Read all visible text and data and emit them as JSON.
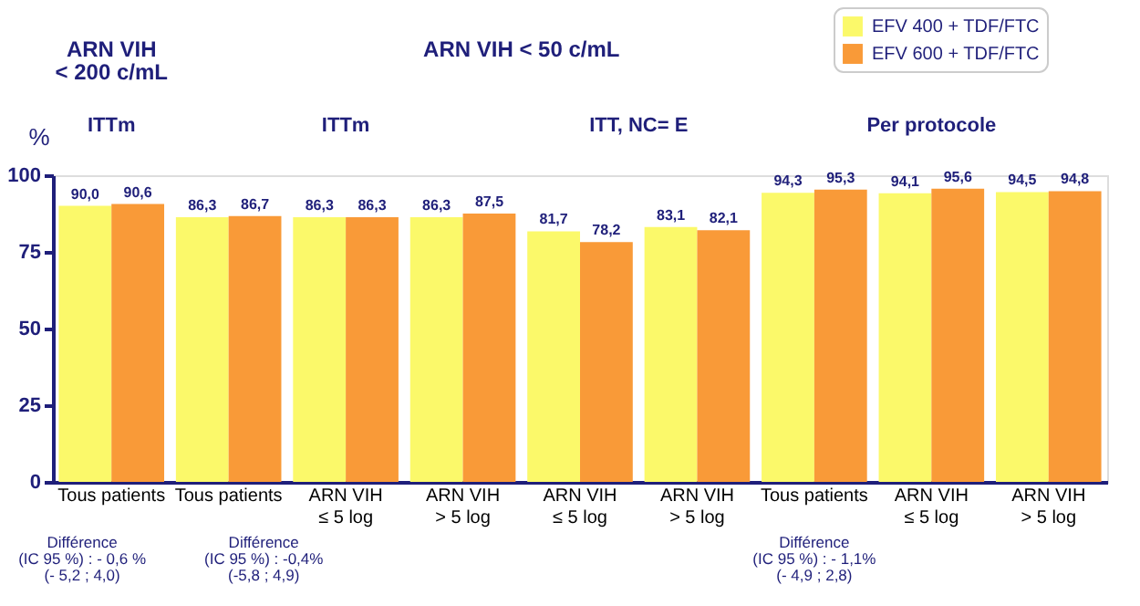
{
  "chart_data": {
    "type": "bar",
    "categories": [
      "Tous patients",
      "Tous patients",
      "ARN VIH\n≤ 5 log",
      "ARN VIH\n> 5 log",
      "ARN VIH\n≤ 5 log",
      "ARN VIH\n> 5 log",
      "Tous patients",
      "ARN VIH\n≤ 5 log",
      "ARN VIH\n> 5 log"
    ],
    "series": [
      {
        "name": "EFV 400 + TDF/FTC",
        "color": "#fbf96a",
        "values": [
          90.0,
          86.3,
          86.3,
          86.3,
          81.7,
          83.1,
          94.3,
          94.1,
          94.5
        ]
      },
      {
        "name": "EFV 600 + TDF/FTC",
        "color": "#f99a38",
        "values": [
          90.6,
          86.7,
          86.3,
          87.5,
          78.2,
          82.1,
          95.3,
          95.6,
          94.8
        ]
      }
    ],
    "value_labels": [
      [
        "90,0",
        "86,3",
        "86,3",
        "86,3",
        "81,7",
        "83,1",
        "94,3",
        "94,1",
        "94,5"
      ],
      [
        "90,6",
        "86,7",
        "86,3",
        "87,5",
        "78,2",
        "82,1",
        "95,3",
        "95,6",
        "94,8"
      ]
    ],
    "ylabel": "%",
    "ylim": [
      0,
      100
    ],
    "yticks": [
      0,
      25,
      50,
      75,
      100
    ],
    "grid": false,
    "legend": "top right",
    "annotations": [
      "ARN VIH\n< 200 c/mL",
      "ARN VIH < 50 c/mL",
      "ITTm",
      "ITTm",
      "ITT, NC= E",
      "Per protocole",
      "Différence\n(IC 95 %) : - 0,6 %\n(- 5,2 ; 4,0)",
      "Différence\n(IC 95 %) : -0,4%\n(-5,8 ; 4,9)",
      "Différence\n(IC 95 %) : - 1,1%\n(- 4,9 ; 2,8)"
    ]
  }
}
